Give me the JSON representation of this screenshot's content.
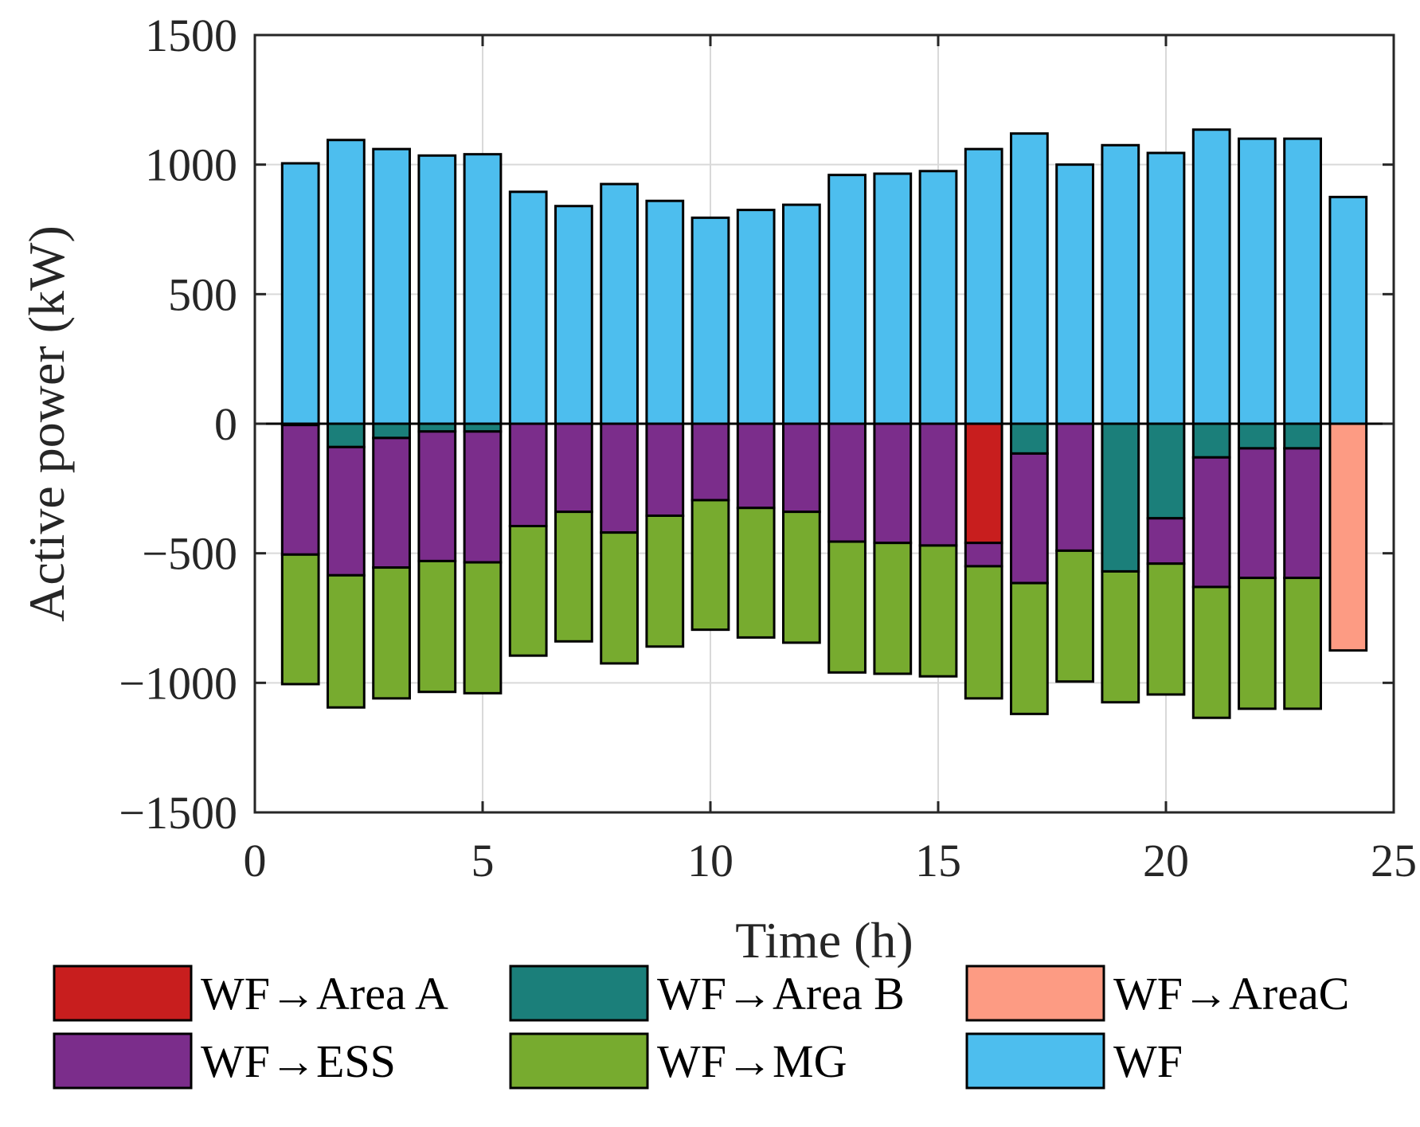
{
  "chart_data": {
    "type": "bar",
    "stacked": true,
    "xlabel": "Time (h)",
    "ylabel": "Active power (kW)",
    "xlim": [
      0,
      25
    ],
    "ylim": [
      -1500,
      1500
    ],
    "xticks": [
      0,
      5,
      10,
      15,
      20,
      25
    ],
    "yticks": [
      1500,
      1000,
      500,
      0,
      -500,
      -1000,
      -1500
    ],
    "ytick_labels": [
      "1500",
      "1000",
      "500",
      "0",
      "−500",
      "−1000",
      "−1500"
    ],
    "grid": true,
    "legend_position": "bottom",
    "x": [
      1,
      2,
      3,
      4,
      5,
      6,
      7,
      8,
      9,
      10,
      11,
      12,
      13,
      14,
      15,
      16,
      17,
      18,
      19,
      20,
      21,
      22,
      23,
      24
    ],
    "series": [
      {
        "name": "WF→Area A",
        "color": "#C81E1E",
        "values": [
          0,
          0,
          0,
          0,
          0,
          0,
          0,
          0,
          0,
          0,
          0,
          0,
          0,
          0,
          0,
          -460,
          0,
          0,
          0,
          0,
          0,
          0,
          0,
          0
        ]
      },
      {
        "name": "WF→Area B",
        "color": "#1B7F7A",
        "values": [
          -5,
          -90,
          -55,
          -30,
          -30,
          0,
          0,
          0,
          0,
          0,
          0,
          0,
          0,
          0,
          0,
          0,
          -115,
          0,
          -570,
          -365,
          -130,
          -95,
          -95,
          0
        ]
      },
      {
        "name": "WF→AreaC",
        "color": "#FD9B83",
        "values": [
          0,
          0,
          0,
          0,
          0,
          0,
          0,
          0,
          0,
          0,
          0,
          0,
          0,
          0,
          0,
          0,
          0,
          0,
          0,
          0,
          0,
          0,
          0,
          -875
        ]
      },
      {
        "name": "WF→ESS",
        "color": "#7B2D8B",
        "values": [
          -500,
          -495,
          -500,
          -500,
          -505,
          -395,
          -340,
          -420,
          -355,
          -295,
          -325,
          -340,
          -455,
          -460,
          -470,
          -90,
          -500,
          -490,
          0,
          -175,
          -500,
          -500,
          -500,
          0
        ]
      },
      {
        "name": "WF→MG",
        "color": "#77AB2F",
        "values": [
          -500,
          -510,
          -505,
          -505,
          -505,
          -500,
          -500,
          -505,
          -505,
          -500,
          -500,
          -505,
          -505,
          -505,
          -505,
          -510,
          -505,
          -505,
          -505,
          -505,
          -505,
          -505,
          -505,
          0
        ]
      },
      {
        "name": "WF",
        "color": "#4DBEEE",
        "values": [
          1005,
          1095,
          1060,
          1035,
          1040,
          895,
          840,
          925,
          860,
          795,
          825,
          845,
          960,
          965,
          975,
          1060,
          1120,
          1000,
          1075,
          1045,
          1135,
          1100,
          1100,
          875
        ]
      }
    ]
  }
}
